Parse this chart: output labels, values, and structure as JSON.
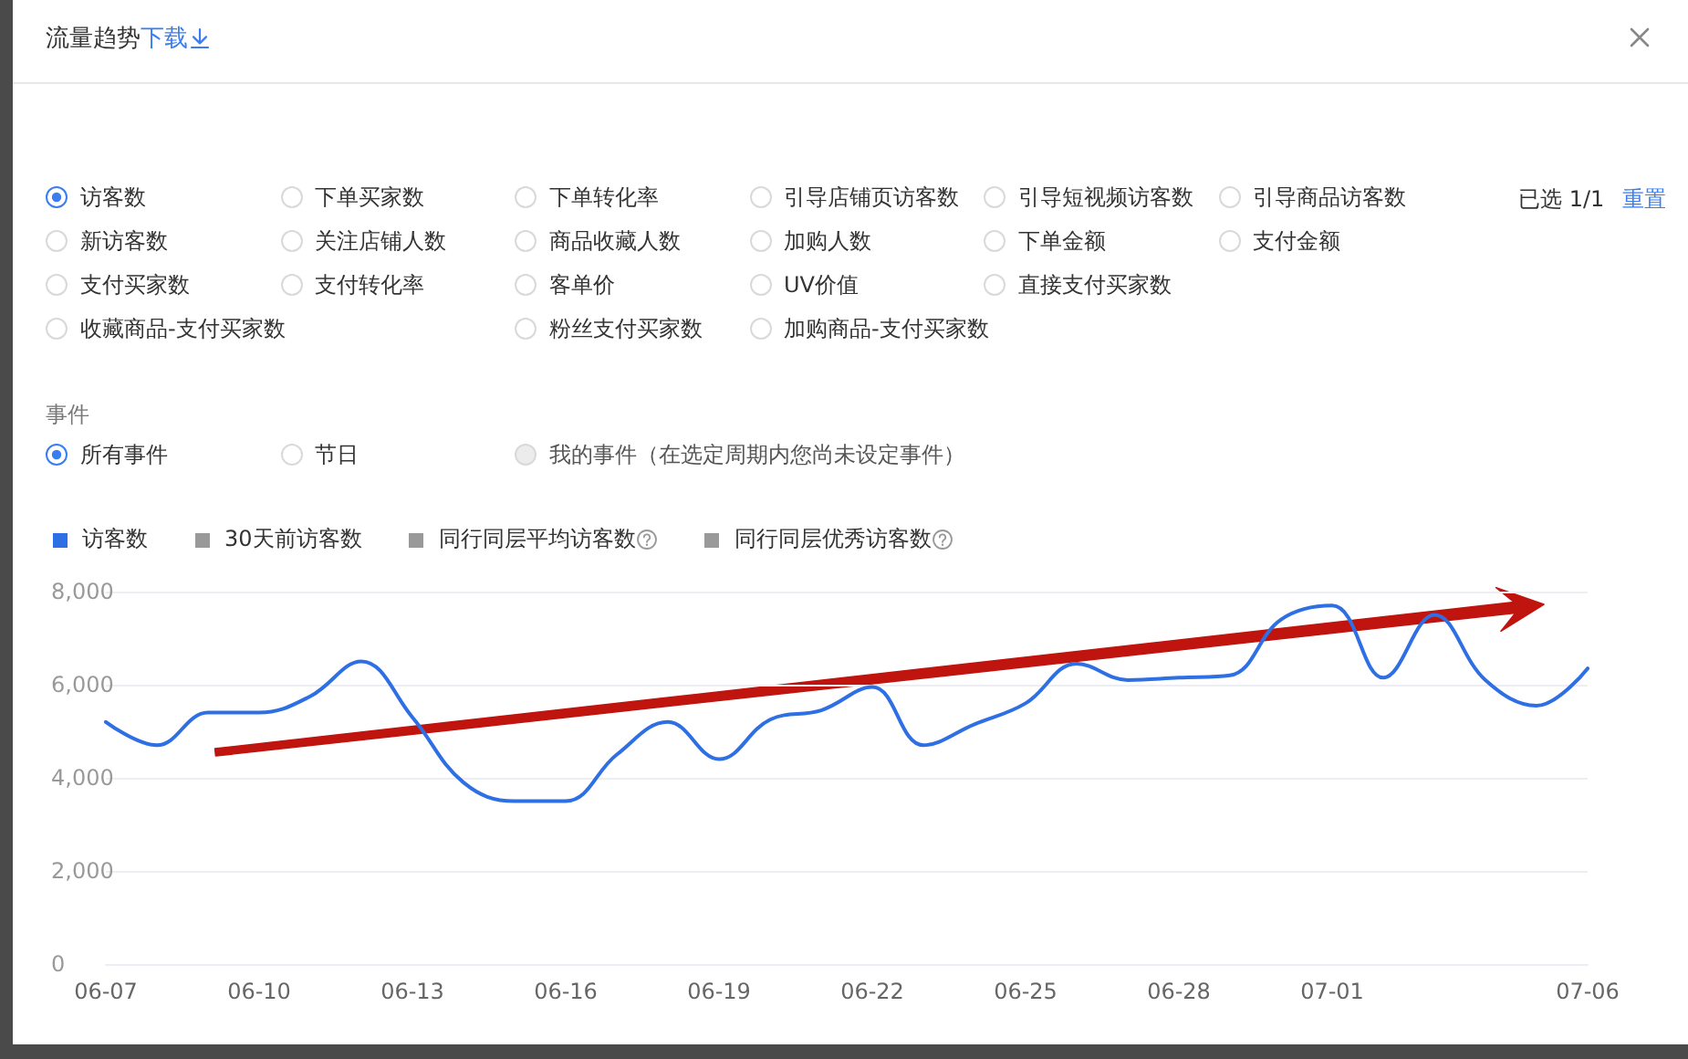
{
  "chart_data": {
    "type": "line",
    "title": "流量趋势",
    "categories": [
      "06-07",
      null,
      null,
      "06-10",
      null,
      null,
      "06-13",
      null,
      null,
      "06-16",
      null,
      null,
      "06-19",
      null,
      null,
      "06-22",
      null,
      null,
      "06-25",
      null,
      null,
      "06-28",
      null,
      null,
      "07-01",
      null,
      null,
      null,
      null,
      "07-06"
    ],
    "series": [
      {
        "name": "访客数",
        "color": "#2f6fe4",
        "values": [
          5200,
          4700,
          5400,
          5400,
          5750,
          6500,
          5300,
          3900,
          3500,
          3500,
          4500,
          5200,
          4400,
          5250,
          5450,
          5950,
          4700,
          5150,
          5600,
          6450,
          6100,
          6150,
          6200,
          7400,
          7700,
          6150,
          7500,
          6100,
          5550,
          6350
        ]
      },
      {
        "name": "30天前访客数",
        "color": "#999999",
        "values": [
          null,
          null,
          null,
          null,
          null,
          null,
          null,
          null,
          null,
          null,
          null,
          null,
          null,
          null,
          null,
          null,
          null,
          null,
          null,
          null,
          null,
          null,
          null,
          null,
          null,
          null,
          null,
          null,
          null,
          null
        ]
      },
      {
        "name": "同行同层平均访客数",
        "color": "#999999",
        "values": [
          null,
          null,
          null,
          null,
          null,
          null,
          null,
          null,
          null,
          null,
          null,
          null,
          null,
          null,
          null,
          null,
          null,
          null,
          null,
          null,
          null,
          null,
          null,
          null,
          null,
          null,
          null,
          null,
          null,
          null
        ]
      },
      {
        "name": "同行同层优秀访客数",
        "color": "#999999",
        "values": [
          null,
          null,
          null,
          null,
          null,
          null,
          null,
          null,
          null,
          null,
          null,
          null,
          null,
          null,
          null,
          null,
          null,
          null,
          null,
          null,
          null,
          null,
          null,
          null,
          null,
          null,
          null,
          null,
          null,
          null
        ]
      }
    ],
    "ylim": [
      0,
      8000
    ],
    "yticks": [
      0,
      {
        "value": 2000,
        "label": "2,000"
      },
      {
        "value": 4000,
        "label": "4,000"
      },
      {
        "value": 6000,
        "label": "6,000"
      },
      {
        "value": 8000,
        "label": "8,000"
      }
    ],
    "grid": "y",
    "legend": "top left",
    "annotations": [
      "下载",
      "访客数",
      "下单买家数",
      "下单转化率",
      "引导店铺页访客数",
      "引导短视频访客数",
      "引导商品访客数",
      "新访客数",
      "关注店铺人数",
      "商品收藏人数",
      "加购人数",
      "下单金额",
      "支付金额",
      "支付买家数",
      "支付转化率",
      "客单价",
      "UV价值",
      "直接支付买家数",
      "收藏商品-支付买家数",
      "粉丝支付买家数",
      "加购商品-支付买家数",
      "已选 1/1",
      "重置",
      "事件",
      "所有事件",
      "节日",
      "我的事件（在选定周期内您尚未设定事件）"
    ]
  }
}
